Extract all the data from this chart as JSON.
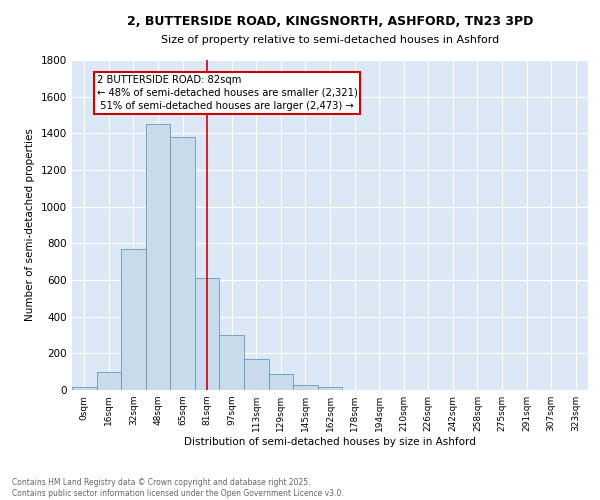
{
  "title_line1": "2, BUTTERSIDE ROAD, KINGSNORTH, ASHFORD, TN23 3PD",
  "title_line2": "Size of property relative to semi-detached houses in Ashford",
  "xlabel": "Distribution of semi-detached houses by size in Ashford",
  "ylabel": "Number of semi-detached properties",
  "bin_labels": [
    "0sqm",
    "16sqm",
    "32sqm",
    "48sqm",
    "65sqm",
    "81sqm",
    "97sqm",
    "113sqm",
    "129sqm",
    "145sqm",
    "162sqm",
    "178sqm",
    "194sqm",
    "210sqm",
    "226sqm",
    "242sqm",
    "258sqm",
    "275sqm",
    "291sqm",
    "307sqm",
    "323sqm"
  ],
  "bar_heights": [
    15,
    100,
    770,
    1450,
    1380,
    610,
    300,
    170,
    85,
    30,
    18,
    0,
    0,
    0,
    0,
    0,
    0,
    0,
    0,
    0,
    0
  ],
  "bar_color": "#c9daea",
  "bar_edge_color": "#6699bb",
  "property_line_color": "#cc0000",
  "annotation_text": "2 BUTTERSIDE ROAD: 82sqm\n← 48% of semi-detached houses are smaller (2,321)\n 51% of semi-detached houses are larger (2,473) →",
  "annotation_box_color": "#cc0000",
  "ylim": [
    0,
    1800
  ],
  "yticks": [
    0,
    200,
    400,
    600,
    800,
    1000,
    1200,
    1400,
    1600,
    1800
  ],
  "bg_color": "#dce8f5",
  "grid_color": "#ffffff",
  "footer_line1": "Contains HM Land Registry data © Crown copyright and database right 2025.",
  "footer_line2": "Contains public sector information licensed under the Open Government Licence v3.0."
}
